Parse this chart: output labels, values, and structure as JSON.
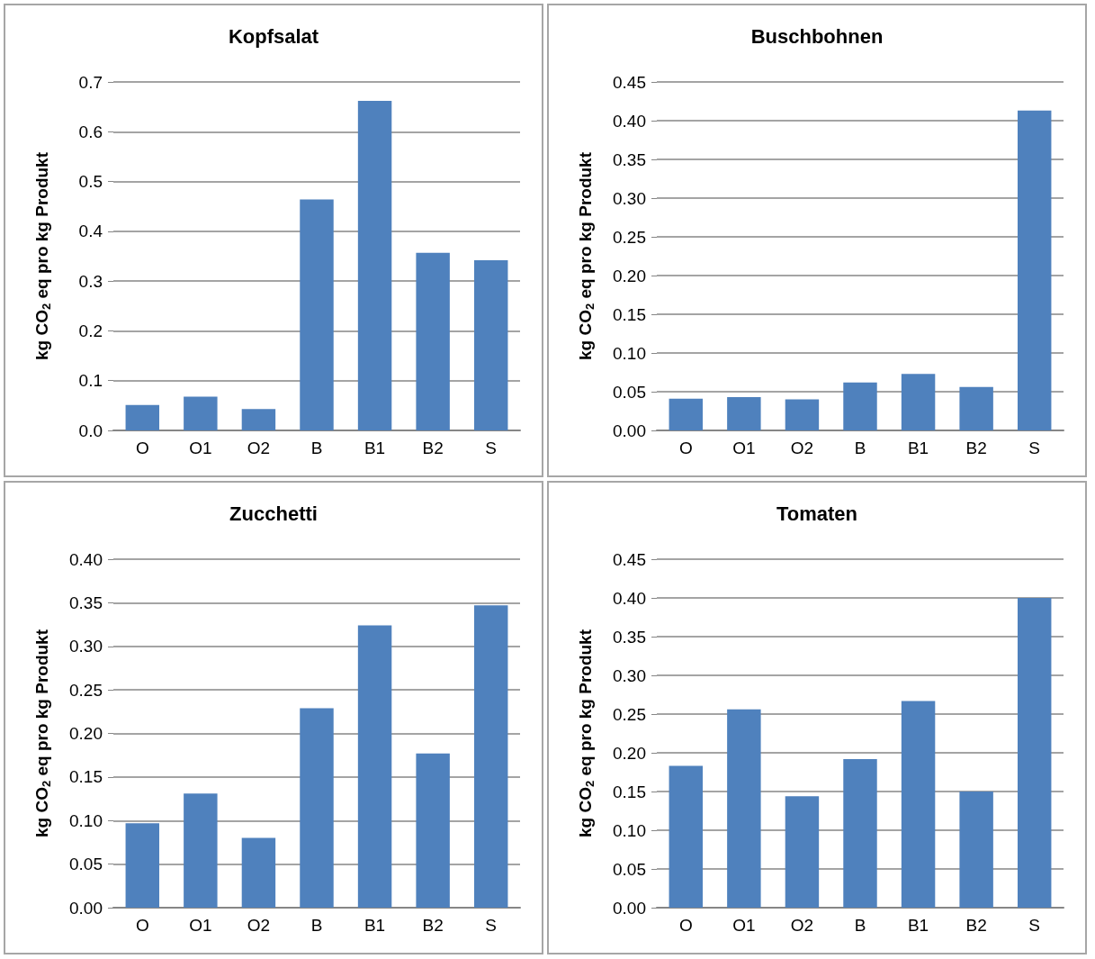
{
  "chart_data": [
    {
      "type": "bar",
      "title": "Kopfsalat",
      "ylabel": "kg CO$_{2}$ eq pro kg Produkt",
      "categories": [
        "O",
        "O1",
        "O2",
        "B",
        "B1",
        "B2",
        "S"
      ],
      "values": [
        0.051,
        0.068,
        0.043,
        0.464,
        0.662,
        0.357,
        0.342
      ],
      "color": "#4f81bd",
      "ylim": [
        0,
        0.7
      ],
      "yticks": [
        {
          "value": 0,
          "label": "0.0"
        },
        0.1,
        0.2,
        0.3,
        0.4,
        0.5,
        0.6,
        0.7
      ],
      "grid": "y"
    },
    {
      "type": "bar",
      "title": "Buschbohnen",
      "ylabel": "kg CO$_{2}$ eq pro kg Produkt",
      "categories": [
        "O",
        "O1",
        "O2",
        "B",
        "B1",
        "B2",
        "S"
      ],
      "values": [
        0.041,
        0.043,
        0.04,
        0.062,
        0.073,
        0.056,
        0.413
      ],
      "color": "#4f81bd",
      "ylim": [
        0,
        0.45
      ],
      "yticks": [
        {
          "value": 0,
          "label": "0.00"
        },
        0.05,
        {
          "value": 0.1,
          "label": "0.10"
        },
        0.15,
        {
          "value": 0.2,
          "label": "0.20"
        },
        0.25,
        {
          "value": 0.3,
          "label": "0.30"
        },
        0.35,
        {
          "value": 0.4,
          "label": "0.40"
        },
        0.45
      ],
      "grid": "y"
    },
    {
      "type": "bar",
      "title": "Zucchetti",
      "ylabel": "kg CO$_{2}$ eq pro kg Produkt",
      "categories": [
        "O",
        "O1",
        "O2",
        "B",
        "B1",
        "B2",
        "S"
      ],
      "values": [
        0.097,
        0.131,
        0.08,
        0.229,
        0.324,
        0.177,
        0.347
      ],
      "color": "#4f81bd",
      "ylim": [
        0,
        0.4
      ],
      "yticks": [
        {
          "value": 0,
          "label": "0.00"
        },
        0.05,
        {
          "value": 0.1,
          "label": "0.10"
        },
        0.15,
        {
          "value": 0.2,
          "label": "0.20"
        },
        0.25,
        {
          "value": 0.3,
          "label": "0.30"
        },
        0.35,
        {
          "value": 0.4,
          "label": "0.40"
        }
      ],
      "grid": "y"
    },
    {
      "type": "bar",
      "title": "Tomaten",
      "ylabel": "kg CO$_{2}$ eq pro kg Produkt",
      "categories": [
        "O",
        "O1",
        "O2",
        "B",
        "B1",
        "B2",
        "S"
      ],
      "values": [
        0.183,
        0.256,
        0.144,
        0.192,
        0.267,
        0.15,
        0.4
      ],
      "color": "#4f81bd",
      "ylim": [
        0,
        0.45
      ],
      "yticks": [
        {
          "value": 0,
          "label": "0.00"
        },
        0.05,
        {
          "value": 0.1,
          "label": "0.10"
        },
        0.15,
        {
          "value": 0.2,
          "label": "0.20"
        },
        0.25,
        {
          "value": 0.3,
          "label": "0.30"
        },
        0.35,
        {
          "value": 0.4,
          "label": "0.40"
        },
        0.45
      ],
      "grid": "y"
    }
  ]
}
